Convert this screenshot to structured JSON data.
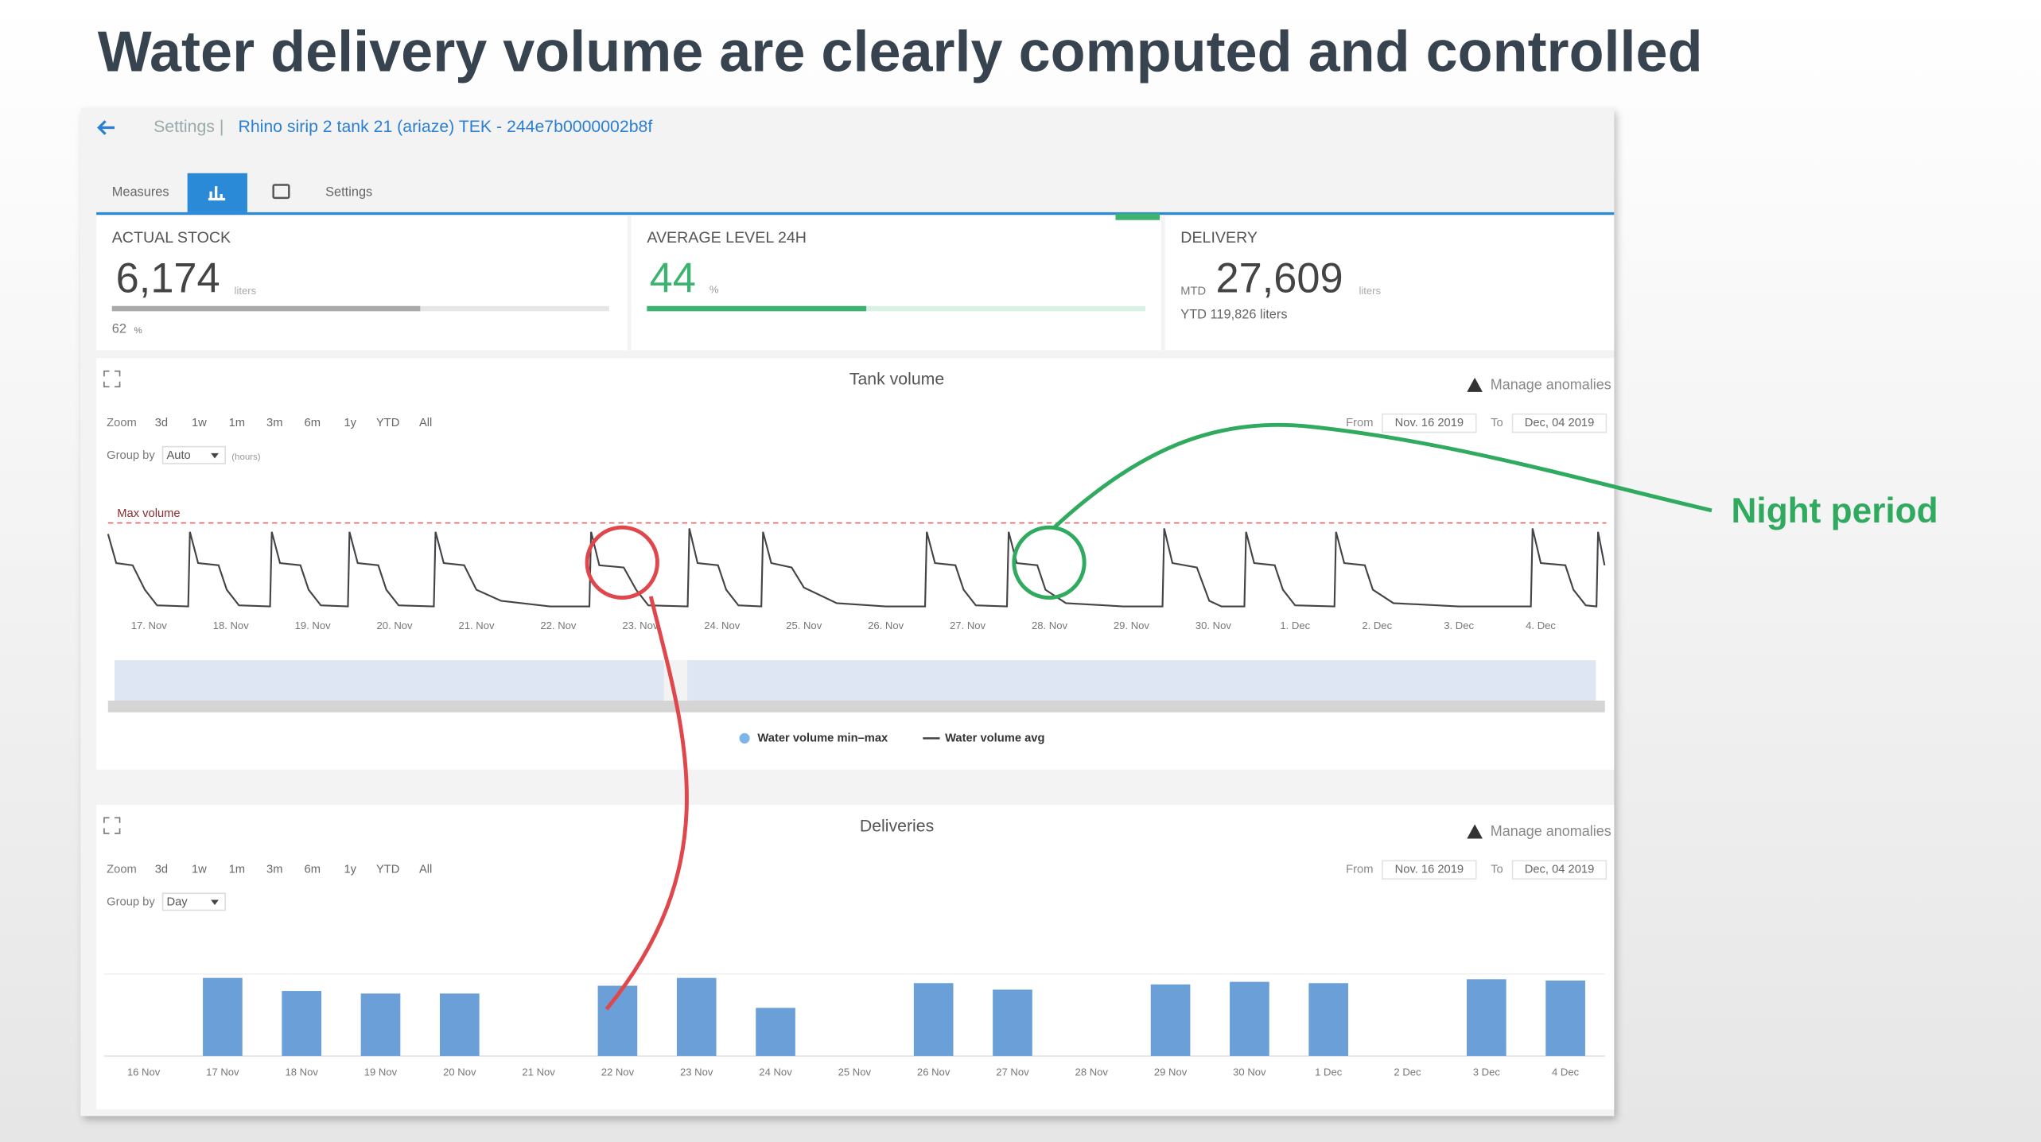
{
  "title": "Water delivery volume are clearly computed and controlled",
  "breadcrumb": {
    "settings": "Settings |",
    "device": "Rhino sirip 2 tank 21 (ariaze) TEK - 244e7b0000002b8f"
  },
  "tabs": [
    "Measures",
    "Settings"
  ],
  "kpis": [
    {
      "label": "ACTUAL STOCK",
      "value": "6,174",
      "unit": "liters",
      "percent": 62,
      "percent_unit": "%"
    },
    {
      "label": "AVERAGE LEVEL 24H",
      "value": 44,
      "unit": "%"
    },
    {
      "label": "DELIVERY",
      "prefix": "MTD",
      "value": "27,609",
      "unit": "liters",
      "ytd": "YTD 119,826 liters"
    }
  ],
  "annotation": "Night period",
  "panels": [
    {
      "manage": "Manage anomalies",
      "zoom_label": "Zoom",
      "zoom_options": [
        "3d",
        "1w",
        "1m",
        "3m",
        "6m",
        "1y",
        "YTD",
        "All"
      ],
      "group_label": "Group by",
      "group_value": "Auto",
      "group_unit": "(hours)",
      "from_label": "From",
      "from": "Nov. 16 2019",
      "to_label": "To",
      "to": "Dec, 04 2019"
    },
    {
      "manage": "Manage anomalies",
      "zoom_label": "Zoom",
      "zoom_options": [
        "3d",
        "1w",
        "1m",
        "3m",
        "6m",
        "1y",
        "YTD",
        "All"
      ],
      "group_label": "Group by",
      "group_value": "Day",
      "from_label": "From",
      "from": "Nov. 16 2019",
      "to_label": "To",
      "to": "Dec, 04 2019"
    }
  ],
  "chart_data": [
    {
      "type": "line",
      "title": "Tank volume",
      "xlim": [
        -0.5,
        17.8
      ],
      "ylim": [
        20,
        110
      ],
      "xticks": [
        {
          "value": 0,
          "label": "17. Nov"
        },
        {
          "value": 1,
          "label": "18. Nov"
        },
        {
          "value": 2,
          "label": "19. Nov"
        },
        {
          "value": 3,
          "label": "20. Nov"
        },
        {
          "value": 4,
          "label": "21. Nov"
        },
        {
          "value": 5,
          "label": "22. Nov"
        },
        {
          "value": 6,
          "label": "23. Nov"
        },
        {
          "value": 7,
          "label": "24. Nov"
        },
        {
          "value": 8,
          "label": "25. Nov"
        },
        {
          "value": 9,
          "label": "26. Nov"
        },
        {
          "value": 10,
          "label": "27. Nov"
        },
        {
          "value": 11,
          "label": "28. Nov"
        },
        {
          "value": 12,
          "label": "29. Nov"
        },
        {
          "value": 13,
          "label": "30. Nov"
        },
        {
          "value": 14,
          "label": "1. Dec"
        },
        {
          "value": 15,
          "label": "2. Dec"
        },
        {
          "value": 16,
          "label": "3. Dec"
        },
        {
          "value": 17,
          "label": "4. Dec"
        }
      ],
      "reference": {
        "label": "Max volume",
        "value": 100,
        "color": "#e06666"
      },
      "band_legend": {
        "name": "Water volume min–max",
        "color": "#7cb5ec"
      },
      "x": [
        -0.5,
        -0.4,
        -0.2,
        -0.05,
        0.1,
        0.48,
        0.5,
        0.6,
        0.85,
        0.95,
        1.1,
        1.48,
        1.5,
        1.6,
        1.85,
        1.95,
        2.1,
        2.43,
        2.45,
        2.55,
        2.8,
        2.9,
        3.05,
        3.48,
        3.5,
        3.6,
        3.85,
        4.0,
        4.3,
        4.9,
        5.38,
        5.4,
        5.5,
        5.8,
        5.95,
        6.1,
        6.58,
        6.6,
        6.7,
        6.95,
        7.05,
        7.2,
        7.48,
        7.5,
        7.6,
        7.85,
        8.0,
        8.4,
        9.0,
        9.48,
        9.5,
        9.6,
        9.85,
        9.95,
        10.1,
        10.48,
        10.5,
        10.6,
        10.85,
        10.95,
        11.2,
        11.9,
        12.38,
        12.4,
        12.5,
        12.8,
        12.95,
        13.1,
        13.38,
        13.4,
        13.5,
        13.75,
        13.85,
        14.0,
        14.48,
        14.5,
        14.6,
        14.85,
        14.95,
        15.2,
        16.0,
        16.85,
        16.88,
        16.9,
        17.0,
        17.3,
        17.4,
        17.55,
        17.68,
        17.7,
        17.78
      ],
      "series": [
        {
          "name": "Water volume avg",
          "color": "#434348",
          "values": [
            90,
            64,
            62,
            40,
            26,
            25,
            92,
            64,
            62,
            40,
            26,
            25,
            92,
            64,
            62,
            40,
            26,
            25,
            92,
            64,
            62,
            40,
            26,
            25,
            92,
            64,
            62,
            40,
            30,
            25,
            25,
            92,
            62,
            60,
            40,
            26,
            25,
            95,
            64,
            62,
            40,
            26,
            25,
            92,
            64,
            60,
            42,
            28,
            25,
            25,
            92,
            64,
            62,
            40,
            26,
            25,
            92,
            64,
            62,
            40,
            28,
            25,
            25,
            95,
            64,
            60,
            30,
            25,
            25,
            92,
            64,
            62,
            40,
            26,
            25,
            92,
            64,
            62,
            40,
            28,
            25,
            25,
            25,
            95,
            64,
            62,
            40,
            26,
            25,
            92,
            62
          ]
        }
      ]
    },
    {
      "type": "bar",
      "title": "Deliveries",
      "categories": [
        "16 Nov",
        "17 Nov",
        "18 Nov",
        "19 Nov",
        "20 Nov",
        "21 Nov",
        "22 Nov",
        "23 Nov",
        "24 Nov",
        "25 Nov",
        "26 Nov",
        "27 Nov",
        "28 Nov",
        "29 Nov",
        "30 Nov",
        "1 Dec",
        "2 Dec",
        "3 Dec",
        "4 Dec"
      ],
      "values": [
        0,
        60,
        50,
        48,
        48,
        0,
        54,
        60,
        37,
        0,
        56,
        51,
        0,
        55,
        57,
        56,
        0,
        59,
        58
      ],
      "color": "#6a9fd8",
      "ylim": [
        0,
        80
      ]
    }
  ]
}
